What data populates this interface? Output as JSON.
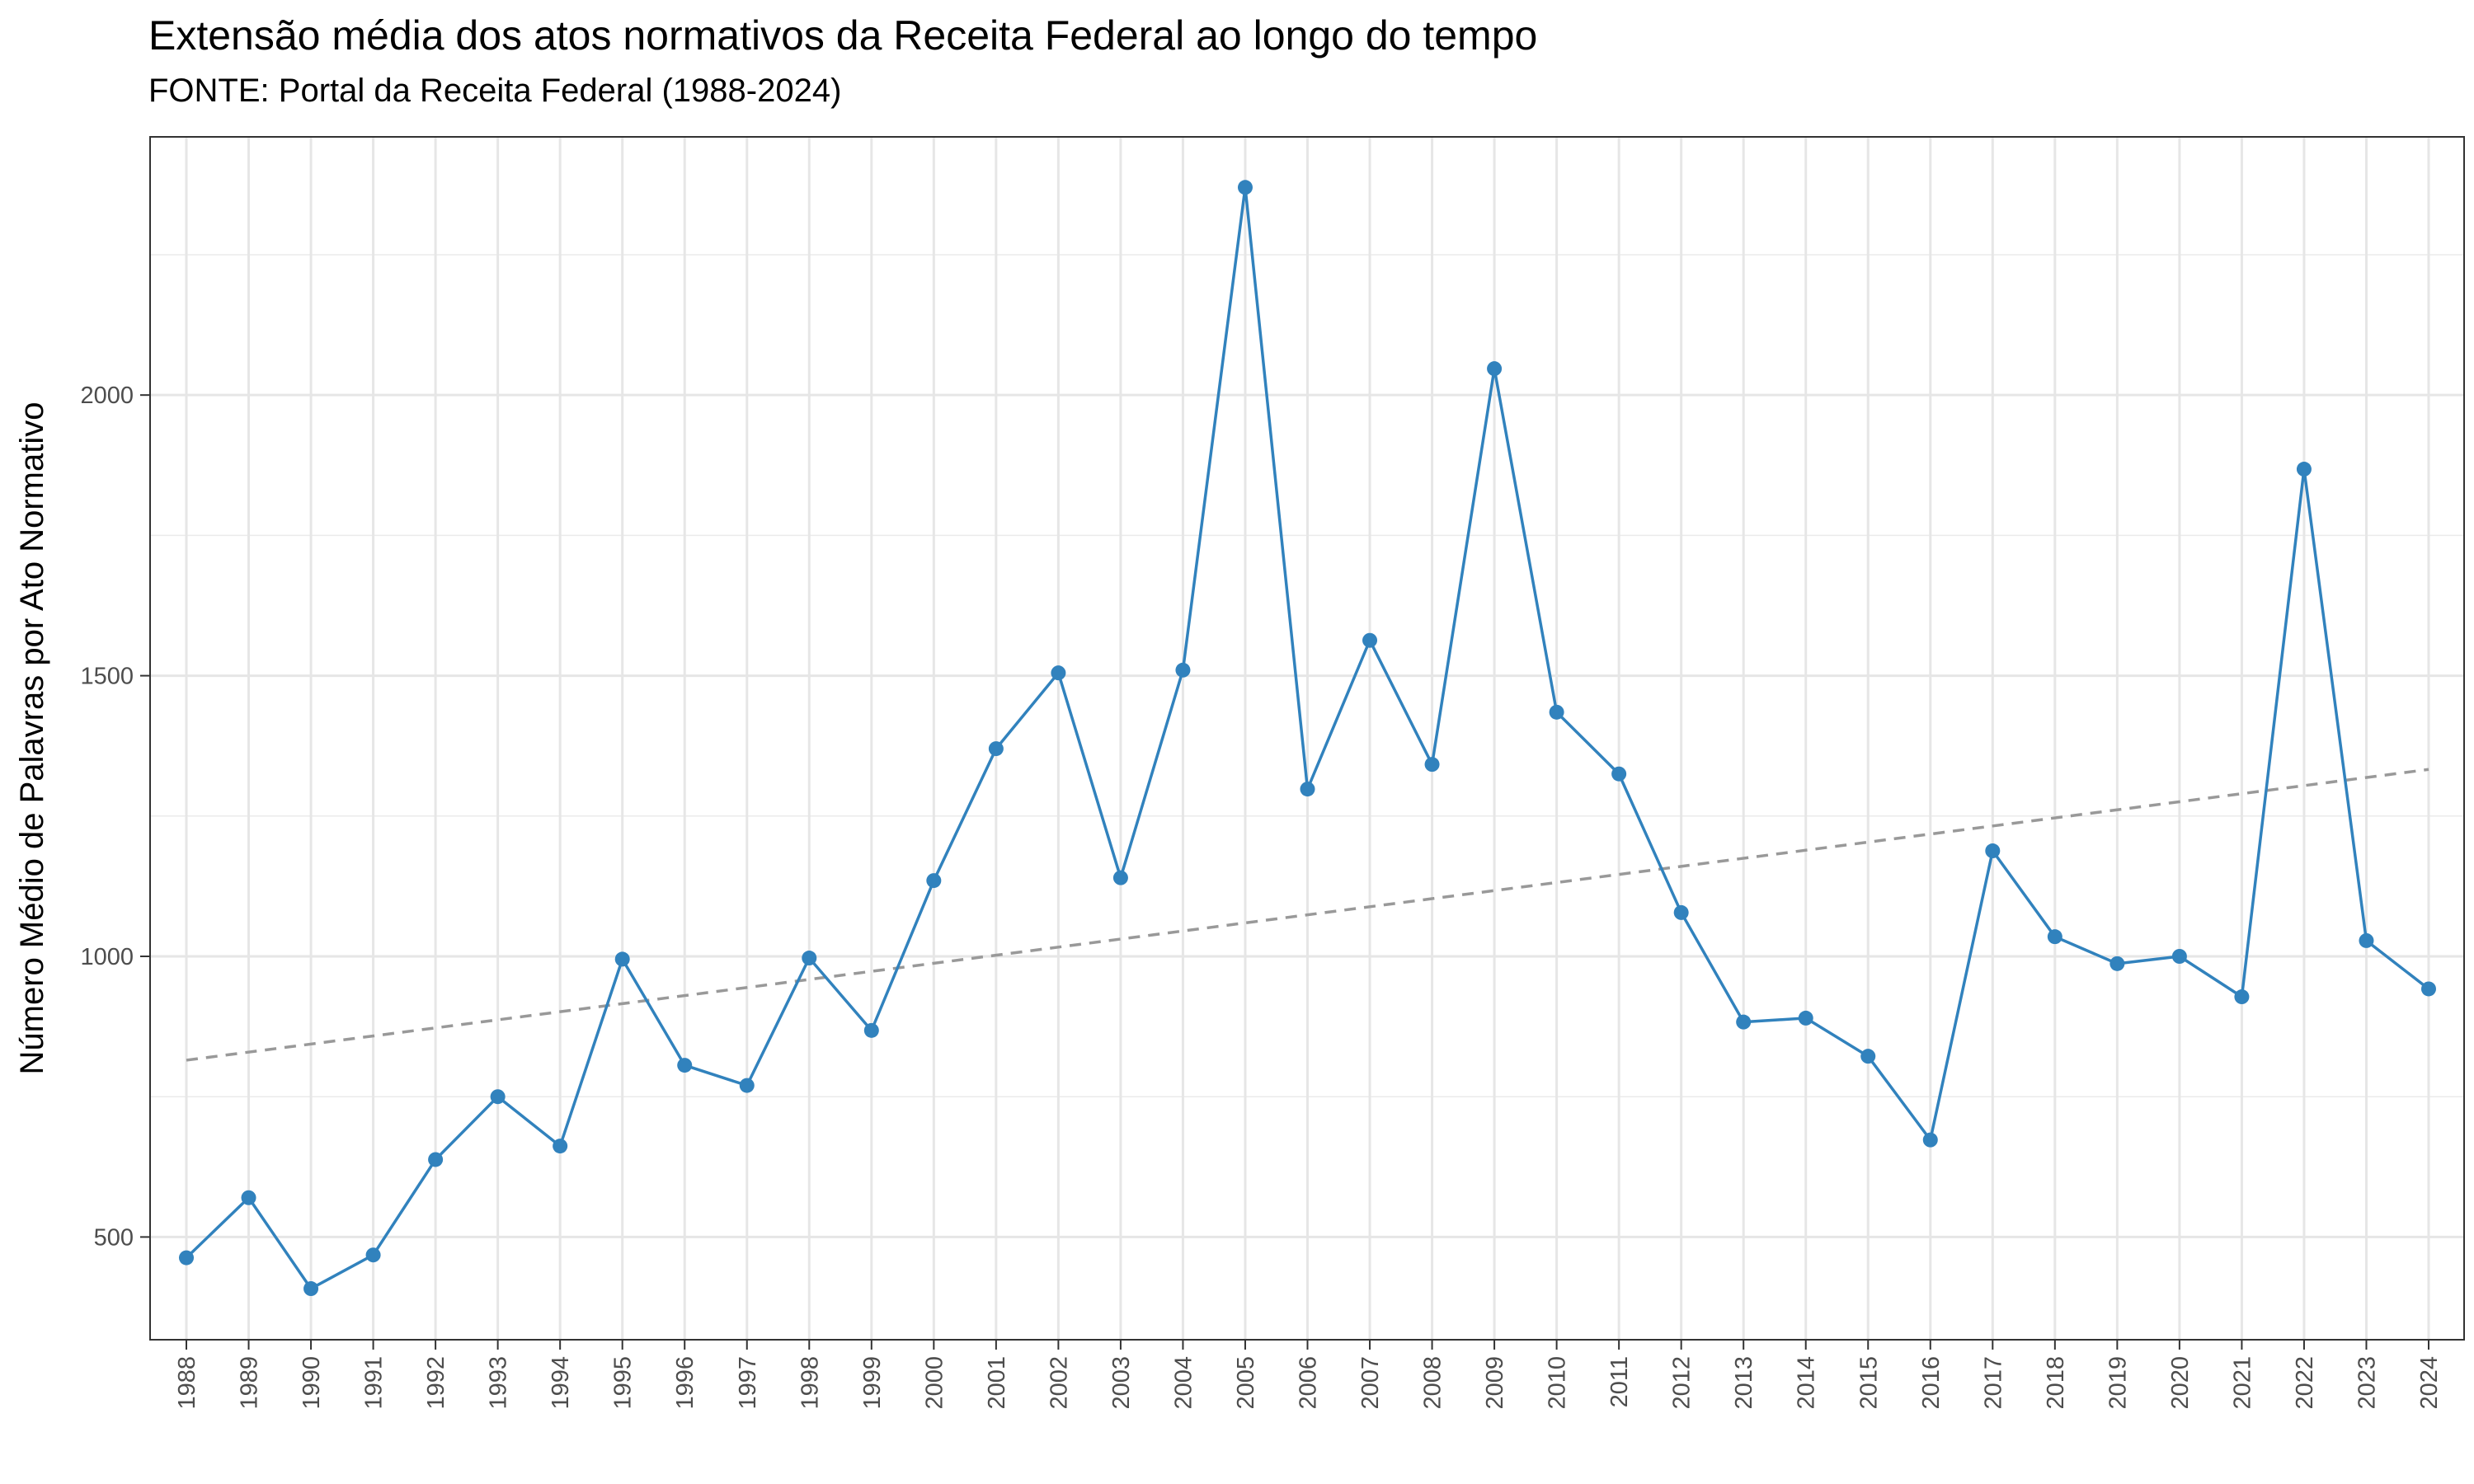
{
  "chart_data": {
    "type": "line",
    "title": "Extensão média dos atos normativos da Receita Federal ao longo do tempo",
    "subtitle": "FONTE: Portal da Receita Federal (1988-2024)",
    "xlabel": "",
    "ylabel": "Número Médio de Palavras por Ato Normativo",
    "ylim": [
      317,
      2460
    ],
    "y_ticks": [
      500,
      1000,
      1500,
      2000
    ],
    "x": [
      "1988",
      "1989",
      "1990",
      "1991",
      "1992",
      "1993",
      "1994",
      "1995",
      "1996",
      "1997",
      "1998",
      "1999",
      "2000",
      "2001",
      "2002",
      "2003",
      "2004",
      "2005",
      "2006",
      "2007",
      "2008",
      "2009",
      "2010",
      "2011",
      "2012",
      "2013",
      "2014",
      "2015",
      "2016",
      "2017",
      "2018",
      "2019",
      "2020",
      "2021",
      "2022",
      "2023",
      "2024"
    ],
    "series": [
      {
        "color": "#3182bd",
        "values": [
          463,
          570,
          408,
          468,
          638,
          750,
          662,
          995,
          806,
          770,
          997,
          868,
          1135,
          1370,
          1505,
          1140,
          1510,
          2370,
          1298,
          1563,
          1342,
          2047,
          1435,
          1325,
          1078,
          883,
          890,
          822,
          673,
          1188,
          1035,
          987,
          1000,
          928,
          1868,
          1028,
          942
        ]
      }
    ],
    "trend_line": {
      "style": "dashed",
      "color": "#999999",
      "start": 815,
      "end": 1333
    },
    "grid": true,
    "legend": "none"
  }
}
